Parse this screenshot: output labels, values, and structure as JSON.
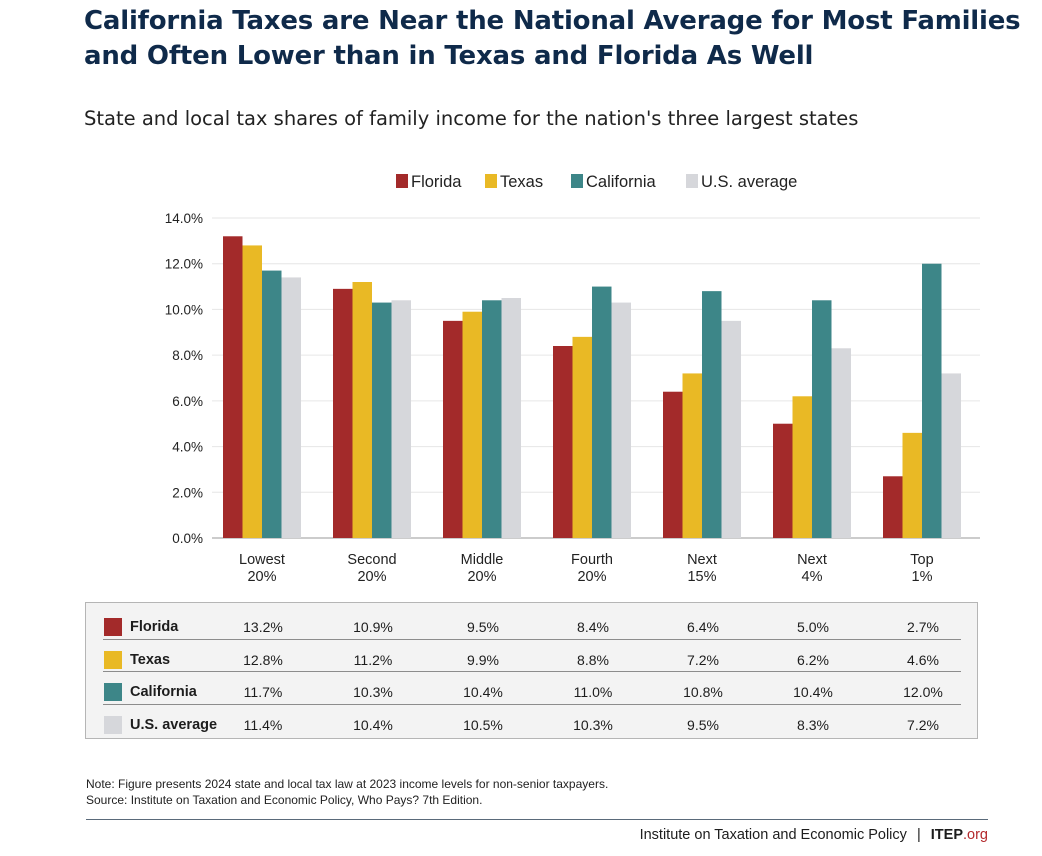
{
  "title": "California Taxes are Near the National Average for Most Families and Often Lower than in Texas and Florida As Well",
  "subtitle": "State and local tax shares of family income for the nation's three largest states",
  "colors": {
    "florida": "#a32a2a",
    "texas": "#e9b925",
    "california": "#3d8688",
    "us_average": "#d6d7db",
    "title": "#0f2a4a",
    "grid": "#e6e6e6"
  },
  "chart_data": {
    "type": "bar",
    "title": "State and local tax shares of family income for the nation's three largest states",
    "xlabel": "",
    "ylabel": "",
    "ylim": [
      0,
      14
    ],
    "yticks": [
      "0.0%",
      "2.0%",
      "4.0%",
      "6.0%",
      "8.0%",
      "10.0%",
      "12.0%",
      "14.0%"
    ],
    "legend_position": "top-center",
    "categories": [
      [
        "Lowest",
        "20%"
      ],
      [
        "Second",
        "20%"
      ],
      [
        "Middle",
        "20%"
      ],
      [
        "Fourth",
        "20%"
      ],
      [
        "Next",
        "15%"
      ],
      [
        "Next",
        "4%"
      ],
      [
        "Top",
        "1%"
      ]
    ],
    "series": [
      {
        "name": "Florida",
        "color": "#a32a2a",
        "values": [
          13.2,
          10.9,
          9.5,
          8.4,
          6.4,
          5.0,
          2.7
        ]
      },
      {
        "name": "Texas",
        "color": "#e9b925",
        "values": [
          12.8,
          11.2,
          9.9,
          8.8,
          7.2,
          6.2,
          4.6
        ]
      },
      {
        "name": "California",
        "color": "#3d8688",
        "values": [
          11.7,
          10.3,
          10.4,
          11.0,
          10.8,
          10.4,
          12.0
        ]
      },
      {
        "name": "U.S. average",
        "color": "#d6d7db",
        "values": [
          11.4,
          10.4,
          10.5,
          10.3,
          9.5,
          8.3,
          7.2
        ]
      }
    ]
  },
  "table": {
    "rows": [
      {
        "label": "Florida",
        "color": "#a32a2a",
        "cells": [
          "13.2%",
          "10.9%",
          "9.5%",
          "8.4%",
          "6.4%",
          "5.0%",
          "2.7%"
        ]
      },
      {
        "label": "Texas",
        "color": "#e9b925",
        "cells": [
          "12.8%",
          "11.2%",
          "9.9%",
          "8.8%",
          "7.2%",
          "6.2%",
          "4.6%"
        ]
      },
      {
        "label": "California",
        "color": "#3d8688",
        "cells": [
          "11.7%",
          "10.3%",
          "10.4%",
          "11.0%",
          "10.8%",
          "10.4%",
          "12.0%"
        ]
      },
      {
        "label": "U.S. average",
        "color": "#d6d7db",
        "cells": [
          "11.4%",
          "10.4%",
          "10.5%",
          "10.3%",
          "9.5%",
          "8.3%",
          "7.2%"
        ]
      }
    ]
  },
  "note": "Note: Figure presents 2024 state and local tax law at 2023 income levels for non-senior taxpayers.",
  "source": "Source: Institute on Taxation and Economic Policy, Who Pays? 7th Edition.",
  "footer": {
    "org_name": "Institute on Taxation and Economic Policy",
    "separator": "|",
    "brand": "ITEP",
    "brand_suffix": ".org"
  }
}
